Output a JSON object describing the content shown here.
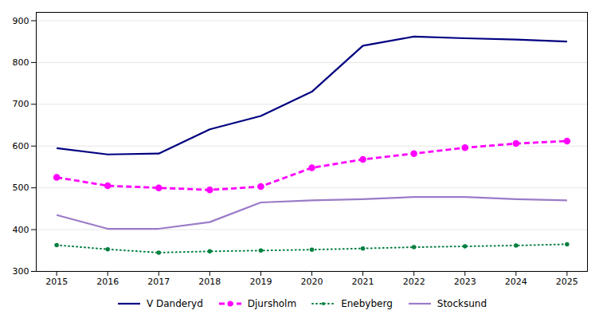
{
  "chart_data": {
    "type": "line",
    "x": [
      2015,
      2016,
      2017,
      2018,
      2019,
      2020,
      2021,
      2022,
      2023,
      2024,
      2025
    ],
    "series": [
      {
        "name": "V Danderyd",
        "color": "#000080",
        "line_style": "solid",
        "values": [
          595,
          580,
          582,
          640,
          672,
          730,
          840,
          862,
          858,
          855,
          850
        ]
      },
      {
        "name": "Djursholm",
        "color": "#FF00FF",
        "line_style": "dashed",
        "marker": "circle",
        "values": [
          525,
          505,
          500,
          495,
          503,
          548,
          568,
          582,
          596,
          606,
          612
        ]
      },
      {
        "name": "Enebyberg",
        "color": "#008040",
        "line_style": "dotted",
        "marker": "point",
        "values": [
          363,
          353,
          345,
          348,
          350,
          352,
          355,
          358,
          360,
          362,
          365
        ]
      },
      {
        "name": "Stocksund",
        "color": "#9B7BC8",
        "line_style": "solid",
        "values": [
          435,
          402,
          402,
          418,
          465,
          470,
          473,
          478,
          478,
          473,
          470
        ]
      }
    ],
    "xlim": [
      2014.6,
      2025.4
    ],
    "xticks": [
      2015,
      2016,
      2017,
      2018,
      2019,
      2020,
      2021,
      2022,
      2023,
      2024,
      2025
    ],
    "ylim": [
      300,
      920
    ],
    "yticks": [
      300,
      400,
      500,
      600,
      700,
      800,
      900
    ],
    "grid": true,
    "legend": "bottom"
  }
}
